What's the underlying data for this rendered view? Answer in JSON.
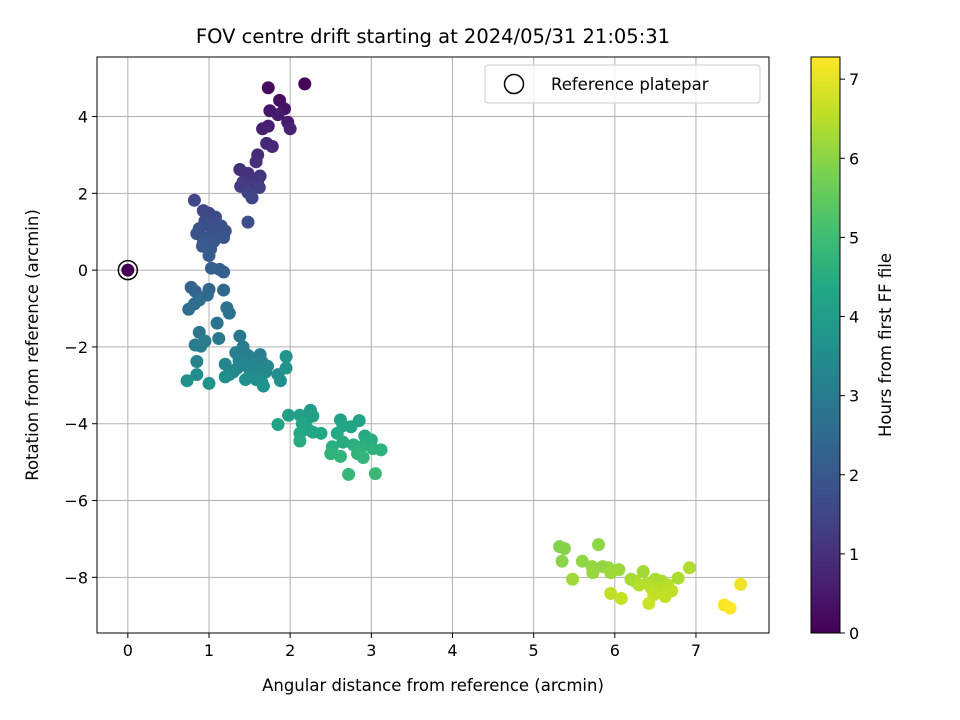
{
  "chart_data": {
    "type": "scatter",
    "title": "FOV centre drift starting at 2024/05/31 21:05:31",
    "xlabel": "Angular distance from reference (arcmin)",
    "ylabel": "Rotation from reference (arcmin)",
    "xlim": [
      -0.38,
      7.9
    ],
    "ylim": [
      -9.45,
      5.55
    ],
    "xticks": [
      0,
      1,
      2,
      3,
      4,
      5,
      6,
      7
    ],
    "yticks": [
      -8,
      -6,
      -4,
      -2,
      0,
      2,
      4
    ],
    "grid": true,
    "legend": {
      "position": "top-right",
      "entries": [
        "Reference platepar"
      ]
    },
    "colorbar": {
      "label": "Hours from first FF file",
      "range": [
        0,
        7.28
      ],
      "ticks": [
        0,
        1,
        2,
        3,
        4,
        5,
        6,
        7
      ],
      "colormap": "viridis"
    },
    "reference_point": {
      "x": 0,
      "y": 0
    },
    "series": [
      {
        "points": [
          {
            "x": 0.0,
            "y": 0.0,
            "c": 0.0
          },
          {
            "x": 2.18,
            "y": 4.85,
            "c": 0.1
          },
          {
            "x": 1.73,
            "y": 4.75,
            "c": 0.2
          },
          {
            "x": 1.87,
            "y": 4.42,
            "c": 0.3
          },
          {
            "x": 1.93,
            "y": 4.2,
            "c": 0.4
          },
          {
            "x": 1.75,
            "y": 4.15,
            "c": 0.45
          },
          {
            "x": 1.85,
            "y": 4.05,
            "c": 0.5
          },
          {
            "x": 1.97,
            "y": 3.85,
            "c": 0.55
          },
          {
            "x": 1.73,
            "y": 3.75,
            "c": 0.6
          },
          {
            "x": 1.66,
            "y": 3.68,
            "c": 0.65
          },
          {
            "x": 2.0,
            "y": 3.68,
            "c": 0.7
          },
          {
            "x": 1.71,
            "y": 3.3,
            "c": 0.8
          },
          {
            "x": 1.78,
            "y": 3.22,
            "c": 0.85
          },
          {
            "x": 1.6,
            "y": 3.0,
            "c": 0.9
          },
          {
            "x": 1.58,
            "y": 2.82,
            "c": 0.95
          },
          {
            "x": 1.38,
            "y": 2.62,
            "c": 1.0
          },
          {
            "x": 1.48,
            "y": 2.52,
            "c": 1.05
          },
          {
            "x": 1.63,
            "y": 2.45,
            "c": 1.1
          },
          {
            "x": 1.6,
            "y": 2.32,
            "c": 1.15
          },
          {
            "x": 1.42,
            "y": 2.3,
            "c": 1.2
          },
          {
            "x": 1.52,
            "y": 2.22,
            "c": 1.25
          },
          {
            "x": 1.39,
            "y": 2.18,
            "c": 1.3
          },
          {
            "x": 1.62,
            "y": 2.15,
            "c": 1.35
          },
          {
            "x": 1.48,
            "y": 2.02,
            "c": 1.4
          },
          {
            "x": 1.53,
            "y": 1.88,
            "c": 1.45
          },
          {
            "x": 0.82,
            "y": 1.82,
            "c": 1.5
          },
          {
            "x": 0.93,
            "y": 1.55,
            "c": 1.55
          },
          {
            "x": 1.0,
            "y": 1.48,
            "c": 1.6
          },
          {
            "x": 1.08,
            "y": 1.38,
            "c": 1.65
          },
          {
            "x": 0.95,
            "y": 1.28,
            "c": 1.7
          },
          {
            "x": 1.48,
            "y": 1.25,
            "c": 1.72
          },
          {
            "x": 0.98,
            "y": 1.18,
            "c": 1.75
          },
          {
            "x": 1.15,
            "y": 1.15,
            "c": 1.78
          },
          {
            "x": 0.88,
            "y": 1.08,
            "c": 1.8
          },
          {
            "x": 1.05,
            "y": 1.05,
            "c": 1.82
          },
          {
            "x": 1.2,
            "y": 1.02,
            "c": 1.85
          },
          {
            "x": 0.85,
            "y": 0.95,
            "c": 1.87
          },
          {
            "x": 1.12,
            "y": 0.92,
            "c": 1.9
          },
          {
            "x": 0.98,
            "y": 0.85,
            "c": 1.92
          },
          {
            "x": 1.18,
            "y": 0.85,
            "c": 1.95
          },
          {
            "x": 1.06,
            "y": 0.75,
            "c": 1.97
          },
          {
            "x": 0.93,
            "y": 0.72,
            "c": 2.0
          },
          {
            "x": 0.92,
            "y": 0.62,
            "c": 2.02
          },
          {
            "x": 1.02,
            "y": 0.55,
            "c": 2.05
          },
          {
            "x": 1.0,
            "y": 0.38,
            "c": 2.1
          },
          {
            "x": 1.03,
            "y": 0.05,
            "c": 2.15
          },
          {
            "x": 1.13,
            "y": 0.02,
            "c": 2.2
          },
          {
            "x": 1.18,
            "y": -0.05,
            "c": 2.25
          },
          {
            "x": 0.78,
            "y": -0.45,
            "c": 2.3
          },
          {
            "x": 0.83,
            "y": -0.55,
            "c": 2.35
          },
          {
            "x": 1.0,
            "y": -0.5,
            "c": 2.4
          },
          {
            "x": 1.18,
            "y": -0.52,
            "c": 2.45
          },
          {
            "x": 0.98,
            "y": -0.65,
            "c": 2.5
          },
          {
            "x": 0.88,
            "y": -0.78,
            "c": 2.55
          },
          {
            "x": 0.82,
            "y": -0.88,
            "c": 2.6
          },
          {
            "x": 0.75,
            "y": -1.02,
            "c": 2.65
          },
          {
            "x": 1.22,
            "y": -0.98,
            "c": 2.7
          },
          {
            "x": 1.25,
            "y": -1.12,
            "c": 2.75
          },
          {
            "x": 1.1,
            "y": -1.38,
            "c": 2.8
          },
          {
            "x": 0.88,
            "y": -1.62,
            "c": 2.85
          },
          {
            "x": 1.38,
            "y": -1.72,
            "c": 2.9
          },
          {
            "x": 1.12,
            "y": -1.78,
            "c": 2.92
          },
          {
            "x": 0.95,
            "y": -1.85,
            "c": 2.95
          },
          {
            "x": 0.83,
            "y": -1.95,
            "c": 2.97
          },
          {
            "x": 0.9,
            "y": -1.98,
            "c": 3.0
          },
          {
            "x": 1.42,
            "y": -2.0,
            "c": 3.02
          },
          {
            "x": 1.33,
            "y": -2.15,
            "c": 3.05
          },
          {
            "x": 1.48,
            "y": -2.22,
            "c": 3.07
          },
          {
            "x": 1.63,
            "y": -2.2,
            "c": 3.1
          },
          {
            "x": 1.43,
            "y": -2.3,
            "c": 3.12
          },
          {
            "x": 1.55,
            "y": -2.32,
            "c": 3.15
          },
          {
            "x": 1.37,
            "y": -2.35,
            "c": 3.17
          },
          {
            "x": 0.85,
            "y": -2.38,
            "c": 3.2
          },
          {
            "x": 1.65,
            "y": -2.38,
            "c": 3.22
          },
          {
            "x": 1.55,
            "y": -2.45,
            "c": 3.25
          },
          {
            "x": 1.2,
            "y": -2.45,
            "c": 3.27
          },
          {
            "x": 1.45,
            "y": -2.48,
            "c": 3.3
          },
          {
            "x": 1.72,
            "y": -2.5,
            "c": 3.32
          },
          {
            "x": 1.35,
            "y": -2.55,
            "c": 3.35
          },
          {
            "x": 1.6,
            "y": -2.6,
            "c": 3.37
          },
          {
            "x": 1.3,
            "y": -2.65,
            "c": 3.4
          },
          {
            "x": 1.7,
            "y": -2.65,
            "c": 3.42
          },
          {
            "x": 1.25,
            "y": -2.72,
            "c": 3.45
          },
          {
            "x": 0.85,
            "y": -2.72,
            "c": 3.47
          },
          {
            "x": 1.5,
            "y": -2.75,
            "c": 3.5
          },
          {
            "x": 1.85,
            "y": -2.72,
            "c": 3.52
          },
          {
            "x": 1.2,
            "y": -2.78,
            "c": 3.55
          },
          {
            "x": 1.45,
            "y": -2.85,
            "c": 3.57
          },
          {
            "x": 1.58,
            "y": -2.85,
            "c": 3.6
          },
          {
            "x": 1.88,
            "y": -2.88,
            "c": 3.62
          },
          {
            "x": 0.73,
            "y": -2.88,
            "c": 3.65
          },
          {
            "x": 1.65,
            "y": -2.92,
            "c": 3.67
          },
          {
            "x": 1.0,
            "y": -2.95,
            "c": 3.7
          },
          {
            "x": 1.67,
            "y": -3.02,
            "c": 3.72
          },
          {
            "x": 1.95,
            "y": -2.25,
            "c": 3.75
          },
          {
            "x": 1.95,
            "y": -2.55,
            "c": 3.78
          },
          {
            "x": 2.25,
            "y": -3.65,
            "c": 4.0
          },
          {
            "x": 1.98,
            "y": -3.78,
            "c": 4.05
          },
          {
            "x": 2.12,
            "y": -3.78,
            "c": 4.08
          },
          {
            "x": 2.28,
            "y": -3.8,
            "c": 4.1
          },
          {
            "x": 2.2,
            "y": -3.9,
            "c": 4.12
          },
          {
            "x": 2.62,
            "y": -3.9,
            "c": 4.15
          },
          {
            "x": 2.85,
            "y": -3.92,
            "c": 4.18
          },
          {
            "x": 2.15,
            "y": -4.0,
            "c": 4.2
          },
          {
            "x": 1.85,
            "y": -4.02,
            "c": 4.22
          },
          {
            "x": 2.65,
            "y": -4.05,
            "c": 4.25
          },
          {
            "x": 2.75,
            "y": -4.08,
            "c": 4.28
          },
          {
            "x": 2.22,
            "y": -4.15,
            "c": 4.3
          },
          {
            "x": 2.28,
            "y": -4.22,
            "c": 4.32
          },
          {
            "x": 2.38,
            "y": -4.25,
            "c": 4.35
          },
          {
            "x": 2.12,
            "y": -4.25,
            "c": 4.38
          },
          {
            "x": 2.58,
            "y": -4.25,
            "c": 4.4
          },
          {
            "x": 2.92,
            "y": -4.32,
            "c": 4.42
          },
          {
            "x": 3.0,
            "y": -4.42,
            "c": 4.45
          },
          {
            "x": 2.12,
            "y": -4.45,
            "c": 4.48
          },
          {
            "x": 2.65,
            "y": -4.48,
            "c": 4.5
          },
          {
            "x": 2.95,
            "y": -4.5,
            "c": 4.52
          },
          {
            "x": 2.78,
            "y": -4.55,
            "c": 4.55
          },
          {
            "x": 2.52,
            "y": -4.6,
            "c": 4.58
          },
          {
            "x": 2.88,
            "y": -4.6,
            "c": 4.6
          },
          {
            "x": 3.02,
            "y": -4.65,
            "c": 4.62
          },
          {
            "x": 3.12,
            "y": -4.68,
            "c": 4.65
          },
          {
            "x": 2.5,
            "y": -4.78,
            "c": 4.68
          },
          {
            "x": 2.83,
            "y": -4.78,
            "c": 4.7
          },
          {
            "x": 2.62,
            "y": -4.85,
            "c": 4.72
          },
          {
            "x": 2.9,
            "y": -4.88,
            "c": 4.75
          },
          {
            "x": 2.72,
            "y": -5.32,
            "c": 4.8
          },
          {
            "x": 3.05,
            "y": -5.3,
            "c": 4.85
          },
          {
            "x": 5.32,
            "y": -7.2,
            "c": 5.9
          },
          {
            "x": 5.38,
            "y": -7.25,
            "c": 5.95
          },
          {
            "x": 5.35,
            "y": -7.58,
            "c": 6.0
          },
          {
            "x": 5.8,
            "y": -7.15,
            "c": 6.02
          },
          {
            "x": 5.6,
            "y": -7.58,
            "c": 6.05
          },
          {
            "x": 5.72,
            "y": -7.72,
            "c": 6.08
          },
          {
            "x": 5.85,
            "y": -7.72,
            "c": 6.1
          },
          {
            "x": 5.92,
            "y": -7.75,
            "c": 6.12
          },
          {
            "x": 5.73,
            "y": -7.88,
            "c": 6.15
          },
          {
            "x": 6.05,
            "y": -7.8,
            "c": 6.18
          },
          {
            "x": 5.95,
            "y": -7.88,
            "c": 6.2
          },
          {
            "x": 5.48,
            "y": -8.05,
            "c": 6.22
          },
          {
            "x": 6.35,
            "y": -7.85,
            "c": 6.25
          },
          {
            "x": 6.2,
            "y": -8.05,
            "c": 6.28
          },
          {
            "x": 6.5,
            "y": -8.05,
            "c": 6.3
          },
          {
            "x": 6.25,
            "y": -8.1,
            "c": 6.32
          },
          {
            "x": 6.58,
            "y": -8.1,
            "c": 6.35
          },
          {
            "x": 6.78,
            "y": -8.02,
            "c": 6.38
          },
          {
            "x": 6.92,
            "y": -7.75,
            "c": 6.4
          },
          {
            "x": 6.4,
            "y": -8.15,
            "c": 6.42
          },
          {
            "x": 6.3,
            "y": -8.2,
            "c": 6.45
          },
          {
            "x": 6.65,
            "y": -8.2,
            "c": 6.48
          },
          {
            "x": 6.45,
            "y": -8.28,
            "c": 6.5
          },
          {
            "x": 6.55,
            "y": -8.3,
            "c": 6.52
          },
          {
            "x": 6.7,
            "y": -8.35,
            "c": 6.55
          },
          {
            "x": 5.95,
            "y": -8.42,
            "c": 6.58
          },
          {
            "x": 6.48,
            "y": -8.45,
            "c": 6.6
          },
          {
            "x": 6.62,
            "y": -8.5,
            "c": 6.62
          },
          {
            "x": 6.08,
            "y": -8.55,
            "c": 6.65
          },
          {
            "x": 6.42,
            "y": -8.68,
            "c": 6.7
          },
          {
            "x": 7.55,
            "y": -8.18,
            "c": 7.1
          },
          {
            "x": 7.35,
            "y": -8.72,
            "c": 7.2
          },
          {
            "x": 7.42,
            "y": -8.8,
            "c": 7.28
          }
        ]
      }
    ]
  }
}
